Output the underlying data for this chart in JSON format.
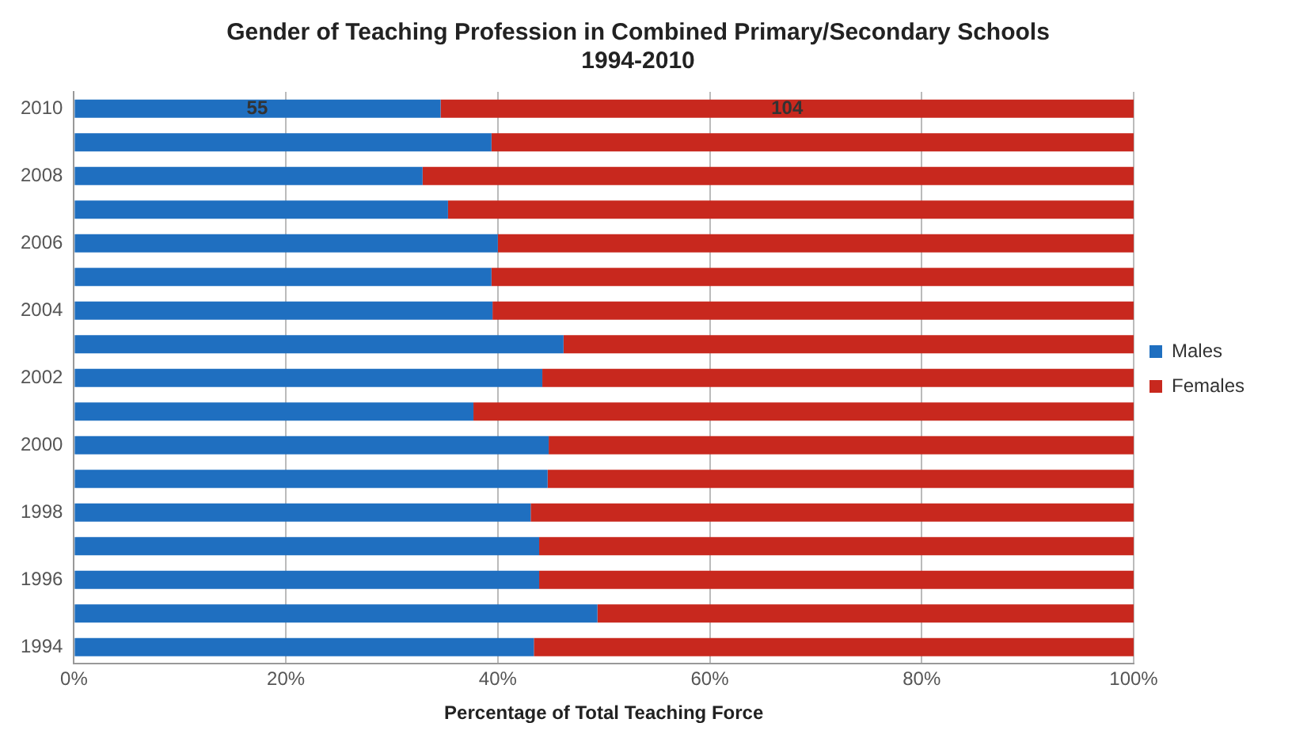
{
  "chart_data": {
    "type": "bar",
    "orientation": "horizontal",
    "stacked": true,
    "title": "Gender of Teaching Profession in Combined Primary/Secondary Schools 1994-2010",
    "xlabel": "Percentage of Total Teaching Force",
    "categories": [
      "2010",
      null,
      "2008",
      null,
      "2006",
      null,
      "2004",
      null,
      "2002",
      null,
      "2000",
      null,
      "1998",
      null,
      "1996",
      null,
      "1994"
    ],
    "series": [
      {
        "name": "Males",
        "color": "#1f6fc0",
        "values": [
          34.6,
          39.4,
          32.9,
          35.3,
          40.0,
          39.4,
          39.5,
          46.2,
          44.2,
          37.7,
          44.8,
          44.7,
          43.1,
          43.9,
          43.9,
          49.4,
          43.4
        ]
      },
      {
        "name": "Females",
        "color": "#c8281e",
        "values": [
          65.4,
          60.6,
          67.1,
          64.7,
          60.0,
          60.6,
          60.5,
          53.8,
          55.8,
          62.3,
          55.2,
          55.3,
          56.9,
          56.1,
          56.1,
          50.6,
          56.6
        ]
      }
    ],
    "annotations": [
      {
        "text": "55",
        "x": 17.3,
        "y": "2010"
      },
      {
        "text": "104",
        "x": 67.3,
        "y": "2010"
      }
    ],
    "xlim": [
      0,
      100
    ],
    "xticks": [
      {
        "value": 0,
        "label": "0%"
      },
      {
        "value": 20,
        "label": "20%"
      },
      {
        "value": 40,
        "label": "40%"
      },
      {
        "value": 60,
        "label": "60%"
      },
      {
        "value": 80,
        "label": "80%"
      },
      {
        "value": 100,
        "label": "100%"
      }
    ],
    "grid": "x",
    "legend": "right"
  }
}
